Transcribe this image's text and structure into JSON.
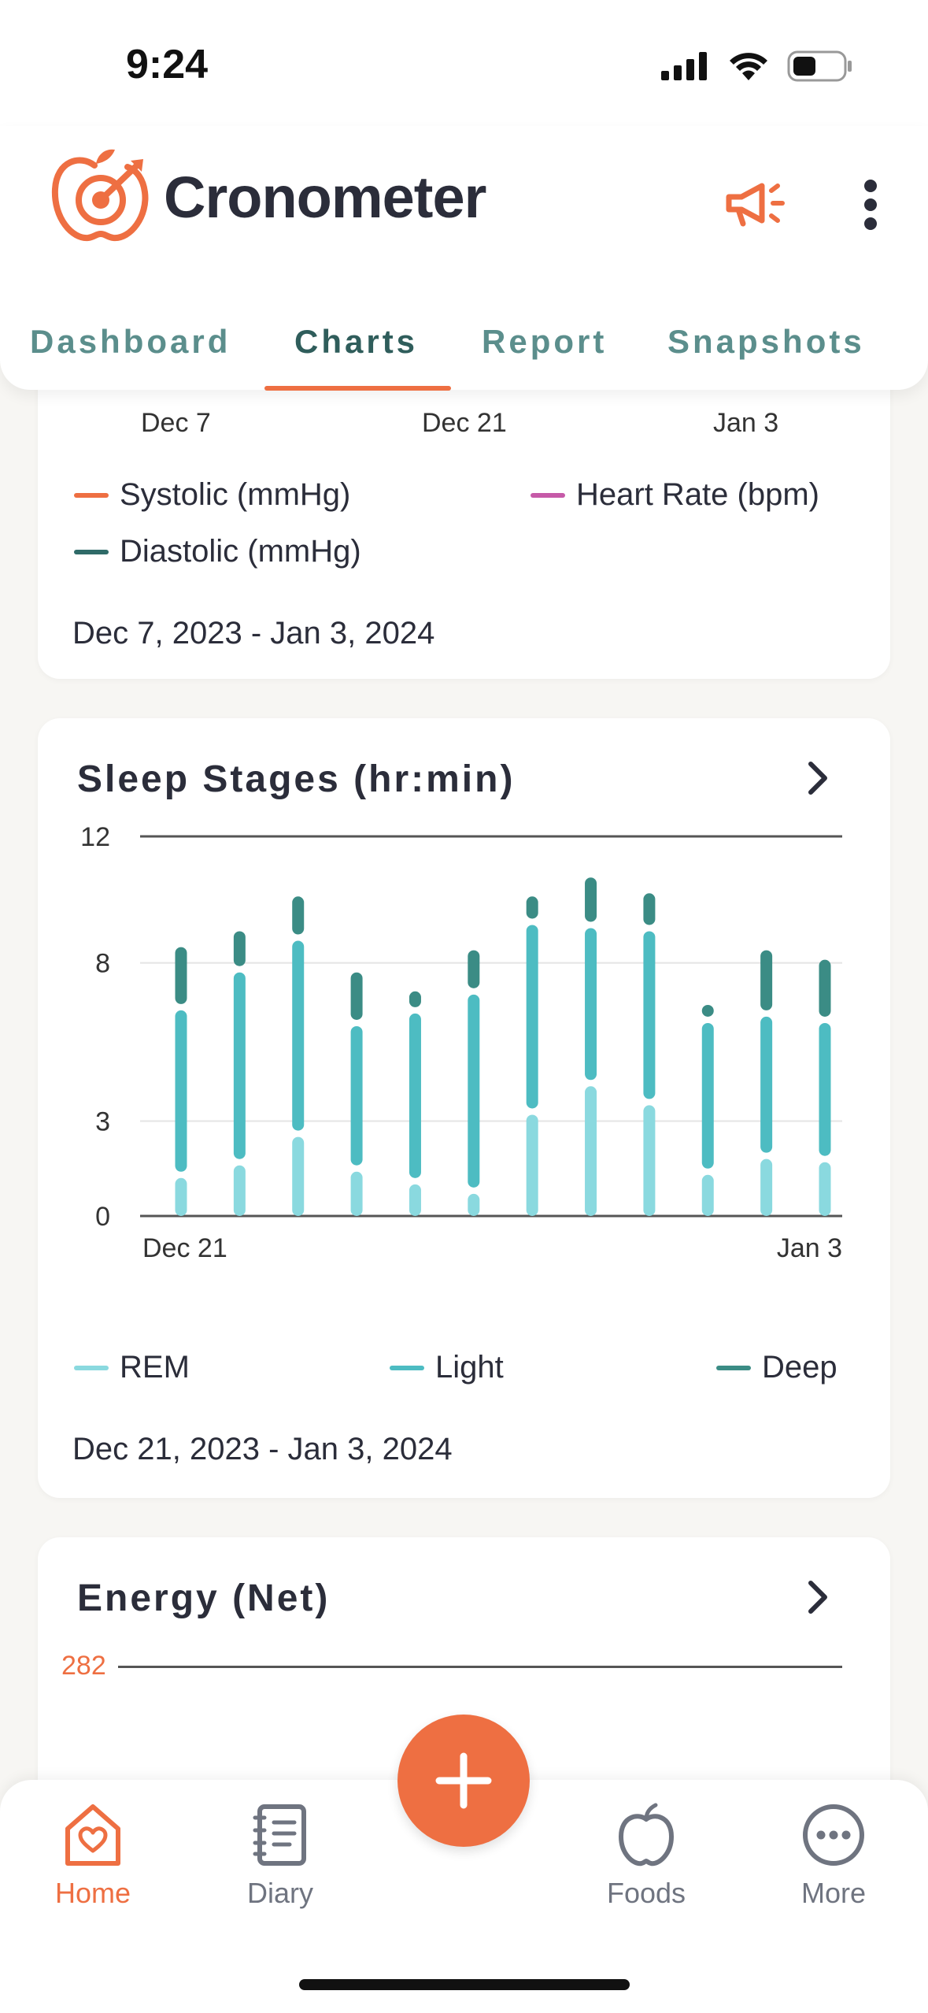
{
  "status_bar": {
    "time": "9:24"
  },
  "header": {
    "app_name": "Cronometer"
  },
  "tabs": [
    {
      "label": "Dashboard",
      "active": false
    },
    {
      "label": "Charts",
      "active": true
    },
    {
      "label": "Report",
      "active": false
    },
    {
      "label": "Snapshots",
      "active": false
    }
  ],
  "bp_card": {
    "x_tick_labels": [
      "Dec 7",
      "Dec 21",
      "Jan 3"
    ],
    "legend": [
      {
        "label": "Systolic (mmHg)",
        "color": "#ee6f42"
      },
      {
        "label": "Heart Rate (bpm)",
        "color": "#c65aa8"
      },
      {
        "label": "Diastolic (mmHg)",
        "color": "#2f6b68"
      }
    ],
    "date_range": "Dec 7, 2023 - Jan 3, 2024"
  },
  "sleep_card": {
    "title": "Sleep Stages (hr:min)",
    "legend": [
      {
        "label": "REM",
        "color": "#8ad9df"
      },
      {
        "label": "Light",
        "color": "#4dbcc2"
      },
      {
        "label": "Deep",
        "color": "#3b8c85"
      }
    ],
    "date_range": "Dec 21, 2023 - Jan 3, 2024"
  },
  "energy_card": {
    "title": "Energy (Net)",
    "y_label": "282"
  },
  "nav": {
    "home": "Home",
    "diary": "Diary",
    "foods": "Foods",
    "more": "More"
  },
  "colors": {
    "accent": "#ee6f42",
    "teal_dark": "#2f5d5b",
    "teal_tab": "#5b8e8c"
  },
  "chart_data": {
    "type": "bar",
    "stacked": true,
    "x_tick_labels": [
      "Dec 21",
      "Jan 3"
    ],
    "y_ticks": [
      0,
      3,
      8,
      12
    ],
    "ylim": [
      0,
      12
    ],
    "grid": true,
    "legend_position": "bottom",
    "series": [
      {
        "name": "REM",
        "color": "#8ad9df",
        "values": [
          1.3,
          1.7,
          2.6,
          1.5,
          1.1,
          0.8,
          3.3,
          4.2,
          3.6,
          1.4,
          1.9,
          1.8
        ]
      },
      {
        "name": "Light",
        "color": "#4dbcc2",
        "values": [
          5.3,
          6.1,
          6.2,
          4.6,
          5.4,
          6.3,
          6.0,
          5.0,
          5.5,
          4.8,
          4.5,
          4.4
        ]
      },
      {
        "name": "Deep",
        "color": "#3b8c85",
        "values": [
          2.0,
          1.3,
          1.4,
          1.7,
          0.7,
          1.4,
          0.9,
          1.6,
          1.2,
          0.5,
          2.1,
          2.0
        ]
      }
    ]
  }
}
